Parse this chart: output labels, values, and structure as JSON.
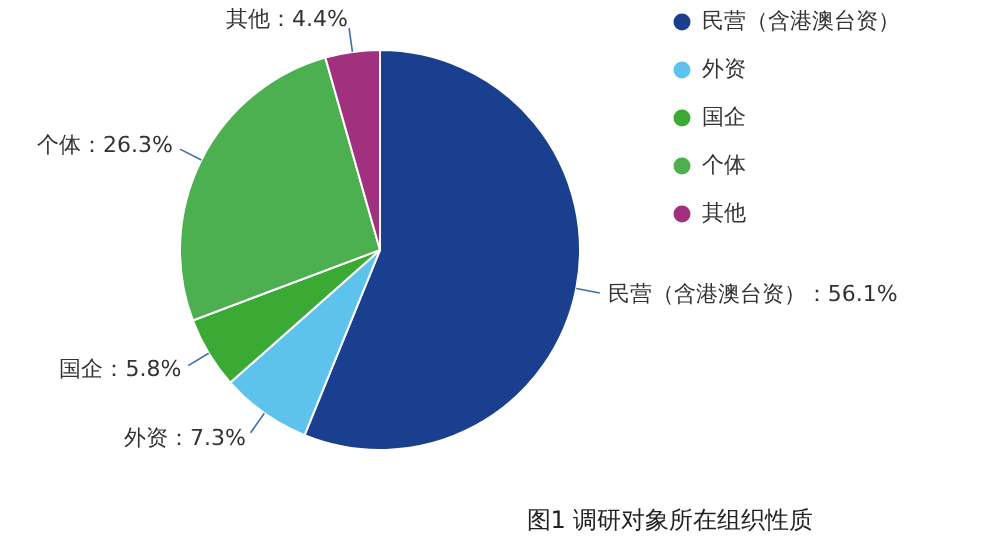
{
  "chart_data": {
    "type": "pie",
    "title": "图1 调研对象所在组织性质",
    "categories": [
      "民营（含港澳台资）",
      "外资",
      "国企",
      "个体",
      "其他"
    ],
    "values": [
      56.1,
      7.3,
      5.8,
      26.3,
      4.4
    ],
    "colors": [
      "#1b3f8f",
      "#5ec3ec",
      "#3aaa35",
      "#4caf50",
      "#a1317f"
    ],
    "value_labels": [
      "民营（含港澳台资）：56.1%",
      "外资：7.3%",
      "国企：5.8%",
      "个体：26.3%",
      "其他：4.4%"
    ],
    "legend": "top right"
  }
}
